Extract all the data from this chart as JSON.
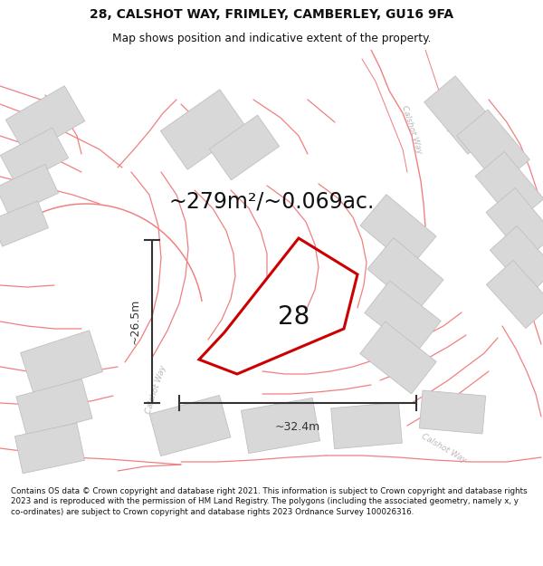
{
  "title": "28, CALSHOT WAY, FRIMLEY, CAMBERLEY, GU16 9FA",
  "subtitle": "Map shows position and indicative extent of the property.",
  "area_text": "~279m²/~0.069ac.",
  "width_label": "~32.4m",
  "height_label": "~26.5m",
  "number_label": "28",
  "footer": "Contains OS data © Crown copyright and database right 2021. This information is subject to Crown copyright and database rights 2023 and is reproduced with the permission of HM Land Registry. The polygons (including the associated geometry, namely x, y co-ordinates) are subject to Crown copyright and database rights 2023 Ordnance Survey 100026316.",
  "property_color": "#cc0000",
  "road_color": "#f08080",
  "building_color": "#d8d8d8",
  "building_edge": "#c0c0c0",
  "road_label_color": "#b8b8b8",
  "dim_color": "#333333",
  "map_bg": "#ffffff",
  "title_fs": 10,
  "subtitle_fs": 8.8,
  "area_fs": 17,
  "num_fs": 20,
  "dim_fs": 9,
  "footer_fs": 6.3,
  "road_lw": 0.9,
  "prop_lw": 2.0
}
